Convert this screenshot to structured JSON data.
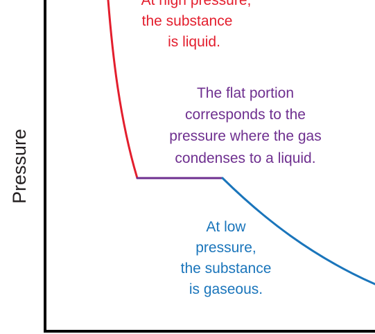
{
  "axes": {
    "y_label": "Pressure"
  },
  "colors": {
    "liquid": "#e31e2d",
    "transition": "#6e2f8f",
    "gas": "#1a75bb",
    "axis": "#000000"
  },
  "annotations": {
    "liquid": {
      "lines": [
        "At high pressure,",
        "the substance",
        "is liquid."
      ]
    },
    "transition": {
      "lines": [
        "The flat portion",
        "corresponds to the",
        "pressure where the gas",
        "condenses to a liquid."
      ]
    },
    "gas": {
      "lines": [
        "At low",
        "pressure,",
        "the substance",
        "is gaseous."
      ]
    }
  }
}
